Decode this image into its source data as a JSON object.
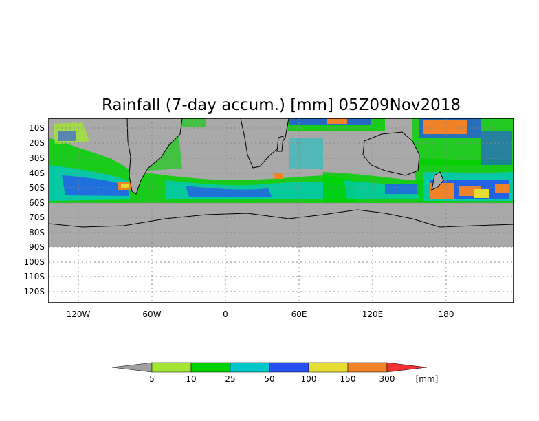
{
  "title": "Rainfall (7-day accum.) [mm] 05Z09Nov2018",
  "map": {
    "type": "rainfall-map",
    "region": "Southern Hemisphere",
    "data_extent_lat": [
      "10S",
      "60S"
    ],
    "land_shading_color": "#a9a9a9",
    "y_ticks": [
      "10S",
      "20S",
      "30S",
      "40S",
      "50S",
      "60S",
      "70S",
      "80S",
      "90S",
      "100S",
      "110S",
      "120S"
    ],
    "x_ticks": [
      "120W",
      "60W",
      "0",
      "60E",
      "120E",
      "180"
    ]
  },
  "legend": {
    "unit": "[mm]",
    "labels": [
      "5",
      "10",
      "25",
      "50",
      "100",
      "150",
      "300"
    ],
    "colors": {
      "below": "#a0a0a0",
      "bins": [
        "#a0e632",
        "#00d200",
        "#00c8c8",
        "#2850f0",
        "#e6dc32",
        "#f08228"
      ],
      "above": "#f03232"
    }
  }
}
